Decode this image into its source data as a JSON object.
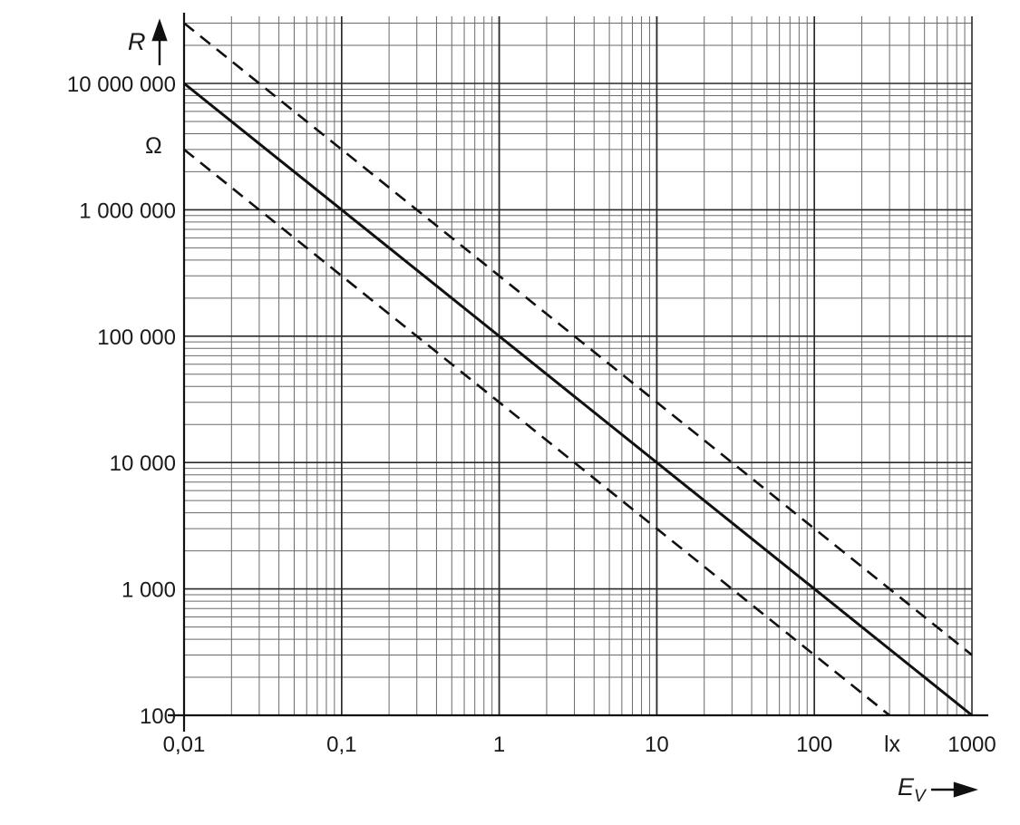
{
  "chart_data": {
    "type": "line",
    "x_scale": "log",
    "y_scale": "log",
    "xlim": [
      0.01,
      1000
    ],
    "ylim": [
      100,
      10000000
    ],
    "grid": true,
    "x_ticks": [
      {
        "value": 0.01,
        "label": "0,01"
      },
      {
        "value": 0.1,
        "label": "0,1"
      },
      {
        "value": 1,
        "label": "1"
      },
      {
        "value": 10,
        "label": "10"
      },
      {
        "value": 100,
        "label": "100"
      },
      {
        "value": 1000,
        "label": "1000"
      }
    ],
    "y_ticks": [
      {
        "value": 100,
        "label": "100"
      },
      {
        "value": 1000,
        "label": "1 000"
      },
      {
        "value": 10000,
        "label": "10 000"
      },
      {
        "value": 100000,
        "label": "100 000"
      },
      {
        "value": 1000000,
        "label": "1 000 000"
      },
      {
        "value": 10000000,
        "label": "10 000 000"
      }
    ],
    "xlabel": "E",
    "xlabel_subscript": "V",
    "x_unit": "lx",
    "ylabel": "R",
    "y_unit": "Ω",
    "series": [
      {
        "style": "solid",
        "x": [
          0.01,
          1000
        ],
        "y": [
          10000000,
          100
        ]
      },
      {
        "style": "dashed",
        "x": [
          0.01,
          1000
        ],
        "y": [
          30000000,
          300
        ]
      },
      {
        "style": "dashed",
        "x": [
          0.01,
          300
        ],
        "y": [
          3000000,
          100
        ]
      }
    ]
  }
}
